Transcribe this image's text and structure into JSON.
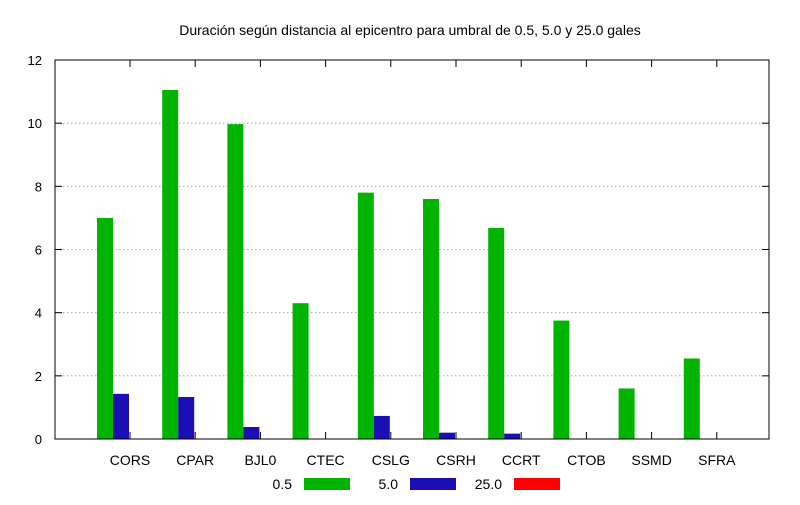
{
  "chart_data": {
    "type": "bar",
    "title": "Duración según distancia al epicentro para umbral de 0.5, 5.0 y 25.0 gales",
    "xlabel": "",
    "ylabel": "",
    "ylim": [
      0,
      12
    ],
    "yticks": [
      0,
      2,
      4,
      6,
      8,
      10,
      12
    ],
    "grid": "horizontal dotted",
    "legend_position": "bottom-center",
    "categories": [
      "CORS",
      "CPAR",
      "BJL0",
      "CTEC",
      "CSLG",
      "CSRH",
      "CCRT",
      "CTOB",
      "SSMD",
      "SFRA"
    ],
    "series": [
      {
        "name": "0.5",
        "color": "#00b400",
        "values": [
          7.0,
          11.05,
          9.97,
          4.3,
          7.8,
          7.6,
          6.68,
          3.75,
          1.6,
          2.55
        ]
      },
      {
        "name": "5.0",
        "color": "#1a0eb4",
        "values": [
          1.43,
          1.33,
          0.38,
          0,
          0.73,
          0.2,
          0.17,
          0,
          0,
          0
        ]
      },
      {
        "name": "25.0",
        "color": "#ff0000",
        "values": [
          0,
          0,
          0,
          0,
          0,
          0,
          0,
          0,
          0,
          0
        ]
      }
    ]
  }
}
